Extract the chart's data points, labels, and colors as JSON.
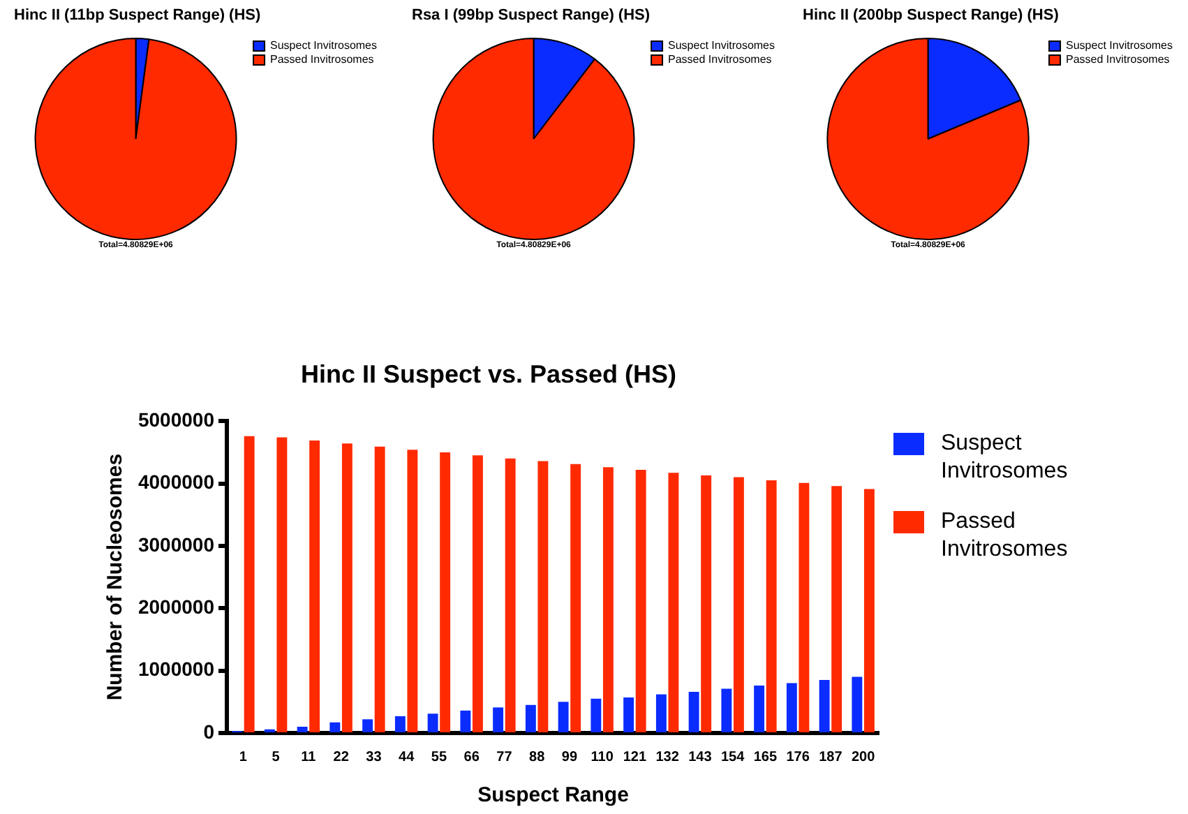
{
  "chart_data": [
    {
      "type": "pie",
      "title": "Hinc II (11bp Suspect Range) (HS)",
      "categories": [
        "Suspect Invitrosomes",
        "Passed Invitrosomes"
      ],
      "values": [
        2.1,
        97.9
      ],
      "colors": [
        "#0a2cff",
        "#ff2a00"
      ],
      "legend": "right",
      "annotations": [
        "Total=4.80829E+06"
      ]
    },
    {
      "type": "pie",
      "title": "Rsa I (99bp Suspect Range) (HS)",
      "categories": [
        "Suspect Invitrosomes",
        "Passed Invitrosomes"
      ],
      "values": [
        10.4,
        89.6
      ],
      "colors": [
        "#0a2cff",
        "#ff2a00"
      ],
      "legend": "right",
      "annotations": [
        "Total=4.80829E+06"
      ]
    },
    {
      "type": "pie",
      "title": "Hinc II (200bp Suspect Range) (HS)",
      "categories": [
        "Suspect Invitrosomes",
        "Passed Invitrosomes"
      ],
      "values": [
        18.7,
        81.3
      ],
      "colors": [
        "#0a2cff",
        "#ff2a00"
      ],
      "legend": "right",
      "annotations": [
        "Total=4.80829E+06"
      ]
    },
    {
      "type": "bar",
      "title": "Hinc II Suspect vs. Passed (HS)",
      "xlabel": "Suspect Range",
      "ylabel": "Number of Nucleosomes",
      "categories": [
        "1",
        "5",
        "11",
        "22",
        "33",
        "44",
        "55",
        "66",
        "77",
        "88",
        "99",
        "110",
        "121",
        "132",
        "143",
        "154",
        "165",
        "176",
        "187",
        "200"
      ],
      "series": [
        {
          "name": "Suspect Invitrosomes",
          "color": "#0a2cff",
          "values": [
            30000,
            60000,
            100000,
            170000,
            220000,
            270000,
            310000,
            360000,
            410000,
            450000,
            500000,
            550000,
            570000,
            620000,
            660000,
            710000,
            760000,
            800000,
            850000,
            900000
          ]
        },
        {
          "name": "Passed Invitrosomes",
          "color": "#ff2a00",
          "values": [
            4760000,
            4740000,
            4690000,
            4640000,
            4590000,
            4540000,
            4500000,
            4450000,
            4400000,
            4360000,
            4310000,
            4260000,
            4220000,
            4170000,
            4130000,
            4100000,
            4050000,
            4010000,
            3960000,
            3910000
          ]
        }
      ],
      "ylim": [
        0,
        5000000
      ],
      "yticks": [
        0,
        1000000,
        2000000,
        3000000,
        4000000,
        5000000
      ],
      "grid": false,
      "legend": "right"
    }
  ]
}
